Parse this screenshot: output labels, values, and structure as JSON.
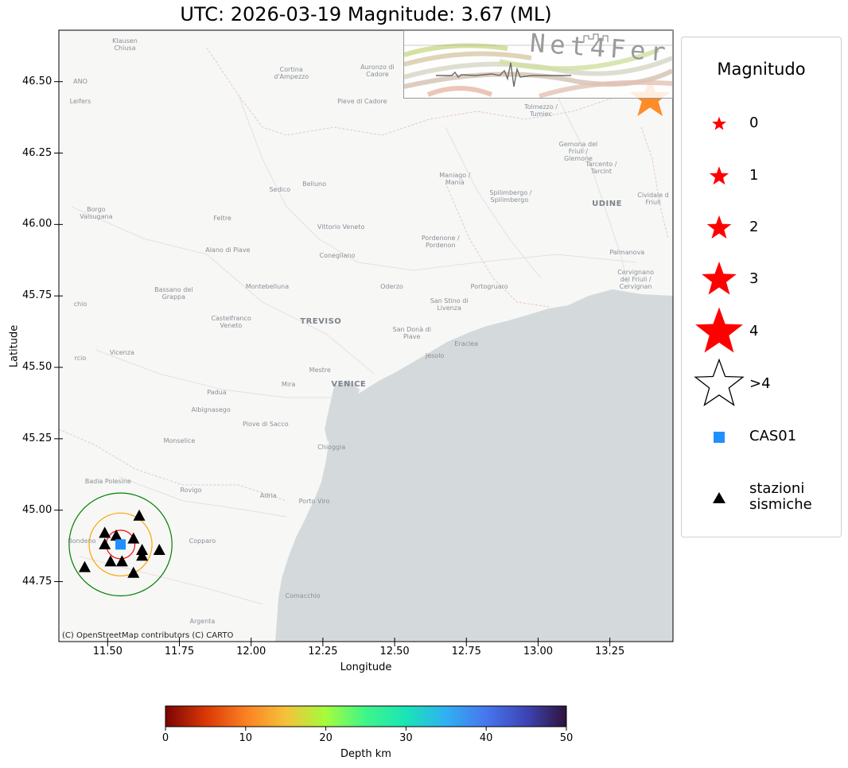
{
  "title": "UTC: 2026-03-19 Magnitude: 3.67 (ML)",
  "map": {
    "xlabel": "Longitude",
    "ylabel": "Latitude",
    "xlim": [
      11.33,
      13.47
    ],
    "ylim": [
      44.54,
      46.68
    ],
    "xticks": [
      11.5,
      11.75,
      12.0,
      12.25,
      12.5,
      12.75,
      13.0,
      13.25
    ],
    "xtick_labels": [
      "11.50",
      "11.75",
      "12.00",
      "12.25",
      "12.50",
      "12.75",
      "13.00",
      "13.25"
    ],
    "yticks": [
      44.75,
      45.0,
      45.25,
      45.5,
      45.75,
      46.0,
      46.25,
      46.5
    ],
    "ytick_labels": [
      "44.75",
      "45.00",
      "45.25",
      "45.50",
      "45.75",
      "46.00",
      "46.25",
      "46.50"
    ],
    "attribution": "(C) OpenStreetMap contributors (C) CARTO",
    "basemap_labels": [
      {
        "text": "Klausen\nChiusa",
        "lon": 11.56,
        "lat": 46.64
      },
      {
        "text": "Cortina\nd'Ampezzo",
        "lon": 12.14,
        "lat": 46.54
      },
      {
        "text": "Auronzo di\nCadore",
        "lon": 12.44,
        "lat": 46.55
      },
      {
        "text": "Pieve di Cadore",
        "lon": 12.37,
        "lat": 46.43
      },
      {
        "text": "Tolmezzo /\nTumiec",
        "lon": 13.01,
        "lat": 46.41
      },
      {
        "text": "Gemona del\nFriuli /\nGlemone",
        "lon": 13.14,
        "lat": 46.28
      },
      {
        "text": "Tarcento /\nTarcint",
        "lon": 13.22,
        "lat": 46.21
      },
      {
        "text": "Maniago /\nManià",
        "lon": 12.71,
        "lat": 46.17
      },
      {
        "text": "Spilimbergo /\nSpilimbergo",
        "lon": 12.9,
        "lat": 46.11
      },
      {
        "text": "UDINE",
        "lon": 13.24,
        "lat": 46.07
      },
      {
        "text": "Cividale d\nFriuli",
        "lon": 13.43,
        "lat": 46.1
      },
      {
        "text": "Borgo\nValsugana",
        "lon": 11.46,
        "lat": 46.05
      },
      {
        "text": "Sedico",
        "lon": 12.1,
        "lat": 46.12
      },
      {
        "text": "Belluno",
        "lon": 12.22,
        "lat": 46.14
      },
      {
        "text": "Feltre",
        "lon": 11.9,
        "lat": 46.02
      },
      {
        "text": "Vittorio Veneto",
        "lon": 12.3,
        "lat": 45.99
      },
      {
        "text": "Pordenone /\nPordenon",
        "lon": 12.66,
        "lat": 45.95
      },
      {
        "text": "Alano di Piave",
        "lon": 11.91,
        "lat": 45.91
      },
      {
        "text": "Conegliano",
        "lon": 12.3,
        "lat": 45.89
      },
      {
        "text": "Palmanova",
        "lon": 13.31,
        "lat": 45.9
      },
      {
        "text": "Cervignano\ndel Friuli /\nCervignan",
        "lon": 13.34,
        "lat": 45.83
      },
      {
        "text": "Bassano del\nGrappa",
        "lon": 11.73,
        "lat": 45.77
      },
      {
        "text": "Montebelluna",
        "lon": 12.05,
        "lat": 45.78
      },
      {
        "text": "Oderzo",
        "lon": 12.49,
        "lat": 45.78
      },
      {
        "text": "Portogruaro",
        "lon": 12.83,
        "lat": 45.78
      },
      {
        "text": "San Stino di\nLivenza",
        "lon": 12.69,
        "lat": 45.73
      },
      {
        "text": "Castelfranco\nVeneto",
        "lon": 11.93,
        "lat": 45.67
      },
      {
        "text": "TREVISO",
        "lon": 12.24,
        "lat": 45.66
      },
      {
        "text": "San Donà di\nPiave",
        "lon": 12.56,
        "lat": 45.63
      },
      {
        "text": "Eraclea",
        "lon": 12.75,
        "lat": 45.58
      },
      {
        "text": "Jesolo",
        "lon": 12.64,
        "lat": 45.54
      },
      {
        "text": "Vicenza",
        "lon": 11.55,
        "lat": 45.55
      },
      {
        "text": "Mestre",
        "lon": 12.24,
        "lat": 45.49
      },
      {
        "text": "Mira",
        "lon": 12.13,
        "lat": 45.44
      },
      {
        "text": "VENICE",
        "lon": 12.34,
        "lat": 45.44
      },
      {
        "text": "Padua",
        "lon": 11.88,
        "lat": 45.41
      },
      {
        "text": "Albignasego",
        "lon": 11.86,
        "lat": 45.35
      },
      {
        "text": "Piove di Sacco",
        "lon": 12.04,
        "lat": 45.3
      },
      {
        "text": "Monselice",
        "lon": 11.75,
        "lat": 45.24
      },
      {
        "text": "Chioggia",
        "lon": 12.28,
        "lat": 45.22
      },
      {
        "text": "Badia Polesine",
        "lon": 11.49,
        "lat": 45.1
      },
      {
        "text": "Rovigo",
        "lon": 11.79,
        "lat": 45.07
      },
      {
        "text": "Adria",
        "lon": 12.06,
        "lat": 45.05
      },
      {
        "text": "Porto Viro",
        "lon": 12.22,
        "lat": 45.03
      },
      {
        "text": "Bondeno",
        "lon": 11.41,
        "lat": 44.89
      },
      {
        "text": "Copparo",
        "lon": 11.83,
        "lat": 44.89
      },
      {
        "text": "Comacchio",
        "lon": 12.18,
        "lat": 44.7
      },
      {
        "text": "Argenta",
        "lon": 11.83,
        "lat": 44.61
      },
      {
        "text": "ANO",
        "lon": 11.38,
        "lat": 46.5
      },
      {
        "text": "Leifers",
        "lon": 11.38,
        "lat": 46.43
      },
      {
        "text": "chio",
        "lon": 11.36,
        "lat": 45.72
      },
      {
        "text": "rcio",
        "lon": 11.35,
        "lat": 45.53
      }
    ]
  },
  "epicenter": {
    "lon": 13.39,
    "lat": 46.44,
    "color": "#ff8c28"
  },
  "reference_station": {
    "name": "CAS01",
    "lon": 11.545,
    "lat": 44.88,
    "color": "#1e90ff"
  },
  "stations": [
    {
      "lon": 11.61,
      "lat": 44.98
    },
    {
      "lon": 11.49,
      "lat": 44.92
    },
    {
      "lon": 11.53,
      "lat": 44.91
    },
    {
      "lon": 11.49,
      "lat": 44.88
    },
    {
      "lon": 11.59,
      "lat": 44.9
    },
    {
      "lon": 11.62,
      "lat": 44.86
    },
    {
      "lon": 11.68,
      "lat": 44.86
    },
    {
      "lon": 11.62,
      "lat": 44.84
    },
    {
      "lon": 11.51,
      "lat": 44.82
    },
    {
      "lon": 11.55,
      "lat": 44.82
    },
    {
      "lon": 11.42,
      "lat": 44.8
    },
    {
      "lon": 11.59,
      "lat": 44.78
    }
  ],
  "rings": [
    {
      "color": "#ff0000",
      "radius_deg": 0.05
    },
    {
      "color": "#ffa500",
      "radius_deg": 0.11
    },
    {
      "color": "#008000",
      "radius_deg": 0.18
    }
  ],
  "legend": {
    "title": "Magnitudo",
    "items": [
      {
        "label": "0",
        "kind": "star",
        "scale": 0.55,
        "fill": "#ff0000"
      },
      {
        "label": "1",
        "kind": "star",
        "scale": 0.75,
        "fill": "#ff0000"
      },
      {
        "label": "2",
        "kind": "star",
        "scale": 0.95,
        "fill": "#ff0000"
      },
      {
        "label": "3",
        "kind": "star",
        "scale": 1.35,
        "fill": "#ff0000"
      },
      {
        "label": "4",
        "kind": "star",
        "scale": 1.85,
        "fill": "#ff0000"
      },
      {
        "label": ">4",
        "kind": "star-outline",
        "scale": 1.85,
        "fill": "none"
      },
      {
        "label": "CAS01",
        "kind": "square",
        "scale": 1,
        "fill": "#1e90ff"
      },
      {
        "label": "stazioni\nsismiche",
        "kind": "triangle",
        "scale": 1,
        "fill": "#000000"
      }
    ]
  },
  "colorbar": {
    "label": "Depth km",
    "range": [
      0,
      50
    ],
    "ticks": [
      0,
      10,
      20,
      30,
      40,
      50
    ],
    "stops": [
      "#7a0403",
      "#d93806",
      "#fb8022",
      "#f5c23a",
      "#a4fc3c",
      "#3ef58a",
      "#1ae4b6",
      "#30b0f2",
      "#4776ee",
      "#3d45b5",
      "#30123b"
    ]
  },
  "logo": {
    "text": "Net4Fer"
  }
}
